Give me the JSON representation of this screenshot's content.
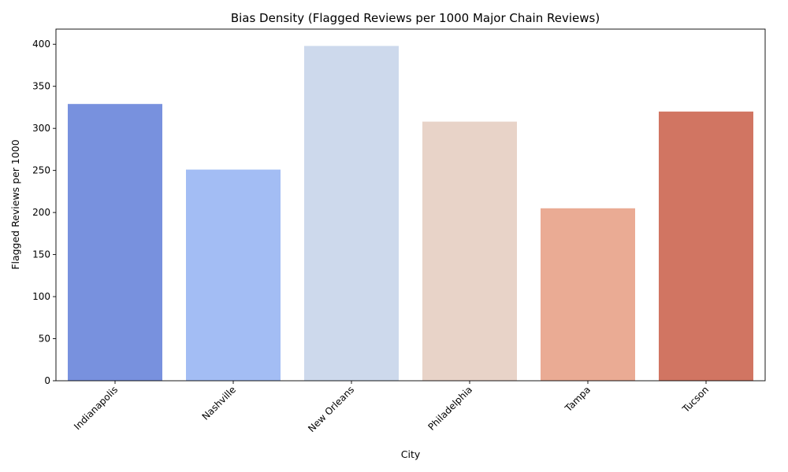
{
  "chart_data": {
    "type": "bar",
    "title": "Bias Density (Flagged Reviews per 1000 Major Chain Reviews)",
    "xlabel": "City",
    "ylabel": "Flagged Reviews per 1000",
    "categories": [
      "Indianapolis",
      "Nashville",
      "New Orleans",
      "Philadelphia",
      "Tampa",
      "Tucson"
    ],
    "values": [
      329,
      251,
      398,
      308,
      205,
      320
    ],
    "colors": [
      "#7891de",
      "#a3bdf4",
      "#cdd9ec",
      "#e8d3c8",
      "#eaab94",
      "#d17562"
    ],
    "ylim": [
      0,
      418
    ],
    "yticks": [
      0,
      50,
      100,
      150,
      200,
      250,
      300,
      350,
      400
    ],
    "grid": false,
    "legend": "none"
  }
}
